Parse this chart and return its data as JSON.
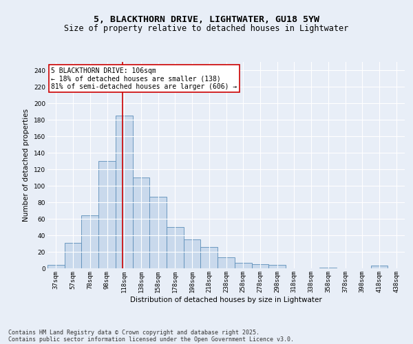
{
  "title_line1": "5, BLACKTHORN DRIVE, LIGHTWATER, GU18 5YW",
  "title_line2": "Size of property relative to detached houses in Lightwater",
  "xlabel": "Distribution of detached houses by size in Lightwater",
  "ylabel": "Number of detached properties",
  "categories": [
    "37sqm",
    "57sqm",
    "78sqm",
    "98sqm",
    "118sqm",
    "138sqm",
    "158sqm",
    "178sqm",
    "198sqm",
    "218sqm",
    "238sqm",
    "258sqm",
    "278sqm",
    "298sqm",
    "318sqm",
    "338sqm",
    "358sqm",
    "378sqm",
    "398sqm",
    "418sqm",
    "438sqm"
  ],
  "values": [
    4,
    31,
    64,
    130,
    185,
    110,
    87,
    50,
    35,
    26,
    13,
    7,
    5,
    4,
    0,
    0,
    1,
    0,
    0,
    3,
    0
  ],
  "bar_color": "#c9d9ec",
  "bar_edge_color": "#5b8db8",
  "background_color": "#e8eef7",
  "grid_color": "#ffffff",
  "annotation_line1": "5 BLACKTHORN DRIVE: 106sqm",
  "annotation_line2": "← 18% of detached houses are smaller (138)",
  "annotation_line3": "81% of semi-detached houses are larger (606) →",
  "annotation_box_color": "#ffffff",
  "annotation_box_edge": "#cc0000",
  "vline_color": "#cc0000",
  "ylim": [
    0,
    250
  ],
  "yticks": [
    0,
    20,
    40,
    60,
    80,
    100,
    120,
    140,
    160,
    180,
    200,
    220,
    240
  ],
  "footnote_line1": "Contains HM Land Registry data © Crown copyright and database right 2025.",
  "footnote_line2": "Contains public sector information licensed under the Open Government Licence v3.0.",
  "title_fontsize": 9.5,
  "subtitle_fontsize": 8.5,
  "axis_label_fontsize": 7.5,
  "tick_fontsize": 6.5,
  "annotation_fontsize": 7,
  "footnote_fontsize": 6
}
